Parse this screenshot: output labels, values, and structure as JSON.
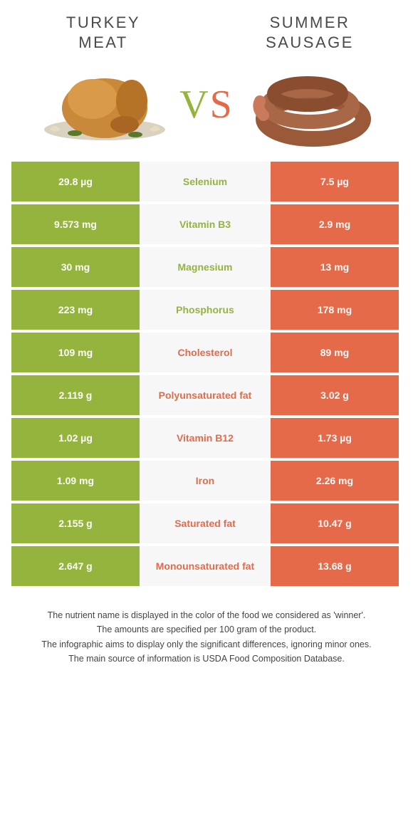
{
  "colors": {
    "left": "#94b43d",
    "right": "#e56a4a",
    "neutral_bg": "#f7f7f7",
    "title_text": "#4a4a4a"
  },
  "food_left": {
    "title_line1": "TURKEY",
    "title_line2": "MEAT"
  },
  "food_right": {
    "title_line1": "SUMMER",
    "title_line2": "SAUSAGE"
  },
  "vs": {
    "v": "V",
    "s": "S"
  },
  "rows": [
    {
      "left": "29.8 µg",
      "label": "Selenium",
      "right": "7.5 µg",
      "winner": "left"
    },
    {
      "left": "9.573 mg",
      "label": "Vitamin B3",
      "right": "2.9 mg",
      "winner": "left"
    },
    {
      "left": "30 mg",
      "label": "Magnesium",
      "right": "13 mg",
      "winner": "left"
    },
    {
      "left": "223 mg",
      "label": "Phosphorus",
      "right": "178 mg",
      "winner": "left"
    },
    {
      "left": "109 mg",
      "label": "Cholesterol",
      "right": "89 mg",
      "winner": "right"
    },
    {
      "left": "2.119 g",
      "label": "Polyunsaturated fat",
      "right": "3.02 g",
      "winner": "right"
    },
    {
      "left": "1.02 µg",
      "label": "Vitamin B12",
      "right": "1.73 µg",
      "winner": "right"
    },
    {
      "left": "1.09 mg",
      "label": "Iron",
      "right": "2.26 mg",
      "winner": "right"
    },
    {
      "left": "2.155 g",
      "label": "Saturated fat",
      "right": "10.47 g",
      "winner": "right"
    },
    {
      "left": "2.647 g",
      "label": "Monounsaturated fat",
      "right": "13.68 g",
      "winner": "right"
    }
  ],
  "footer": [
    "The nutrient name is displayed in the color of the food we considered as 'winner'.",
    "The amounts are specified per 100 gram of the product.",
    "The infographic aims to display only the significant differences, ignoring minor ones.",
    "The main source of information is USDA Food Composition Database."
  ]
}
